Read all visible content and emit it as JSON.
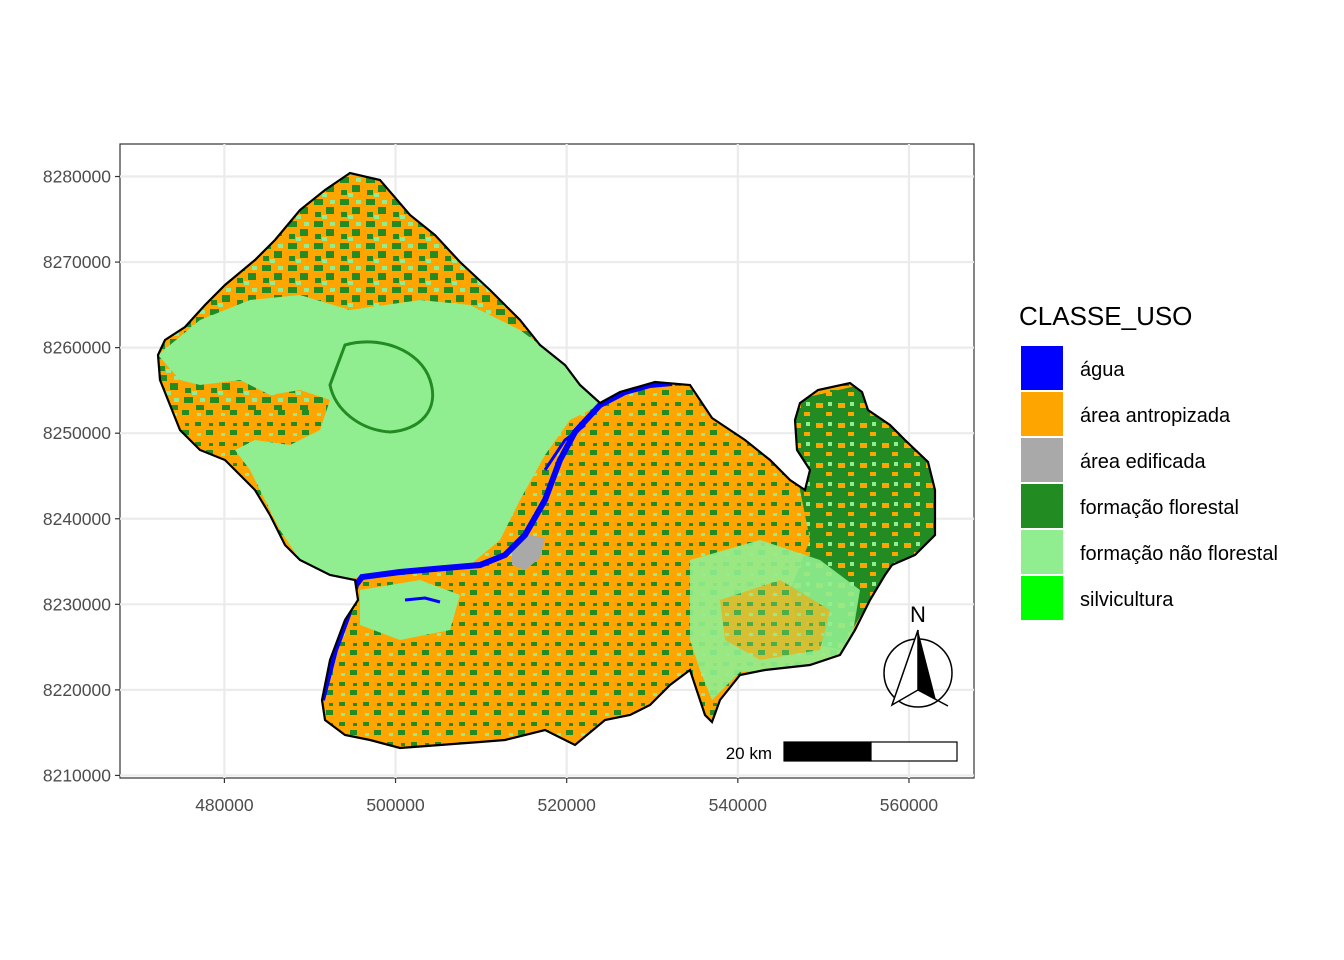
{
  "legend": {
    "title": "CLASSE_USO",
    "items": [
      {
        "label": "água",
        "color": "#0000FF"
      },
      {
        "label": "área antropizada",
        "color": "#FFA500"
      },
      {
        "label": "área edificada",
        "color": "#A9A9A9"
      },
      {
        "label": "formação florestal",
        "color": "#228B22"
      },
      {
        "label": "formação não florestal",
        "color": "#90EE90"
      },
      {
        "label": "silvicultura",
        "color": "#00FF00"
      }
    ]
  },
  "axes": {
    "x_ticks": [
      {
        "value": 480000,
        "label": "480000"
      },
      {
        "value": 500000,
        "label": "500000"
      },
      {
        "value": 520000,
        "label": "520000"
      },
      {
        "value": 540000,
        "label": "540000"
      },
      {
        "value": 560000,
        "label": "560000"
      }
    ],
    "y_ticks": [
      {
        "value": 8210000,
        "label": "8210000"
      },
      {
        "value": 8220000,
        "label": "8220000"
      },
      {
        "value": 8230000,
        "label": "8230000"
      },
      {
        "value": 8240000,
        "label": "8240000"
      },
      {
        "value": 8250000,
        "label": "8250000"
      },
      {
        "value": 8260000,
        "label": "8260000"
      },
      {
        "value": 8270000,
        "label": "8270000"
      },
      {
        "value": 8280000,
        "label": "8280000"
      }
    ],
    "xlim": [
      467800,
      567600
    ],
    "ylim": [
      8209700,
      8283800
    ],
    "grid": true
  },
  "scale_bar": {
    "label": "20 km"
  },
  "north_arrow": {
    "label": "N"
  }
}
